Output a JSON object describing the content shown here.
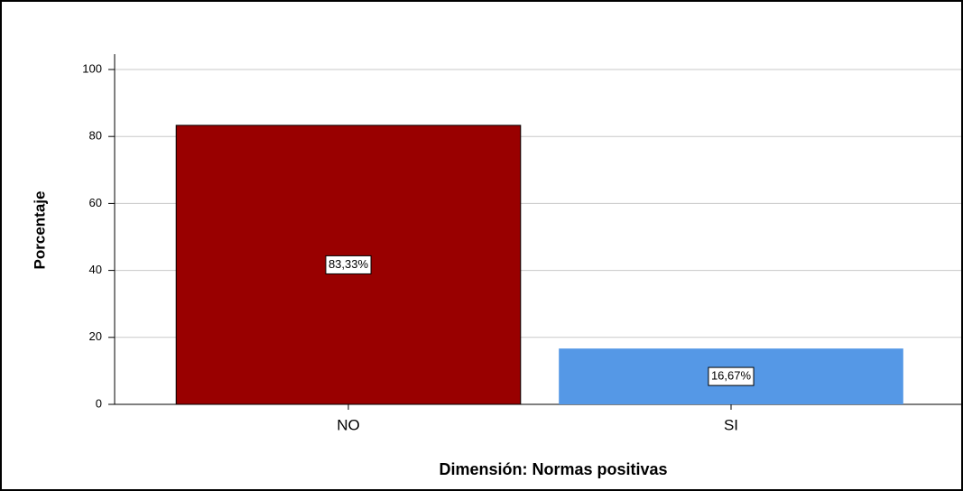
{
  "chart_data": {
    "type": "bar",
    "x_label": "Dimensión: Normas positivas",
    "y_label": "Porcentaje",
    "categories": [
      "NO",
      "SI"
    ],
    "values": [
      83.33,
      16.67
    ],
    "value_labels": [
      "83,33%",
      "16,67%"
    ],
    "colors": [
      "#990000",
      "#5598e6"
    ],
    "ylim": [
      0,
      100
    ],
    "yticks": [
      0,
      20,
      40,
      60,
      80,
      100
    ],
    "grid": true
  }
}
